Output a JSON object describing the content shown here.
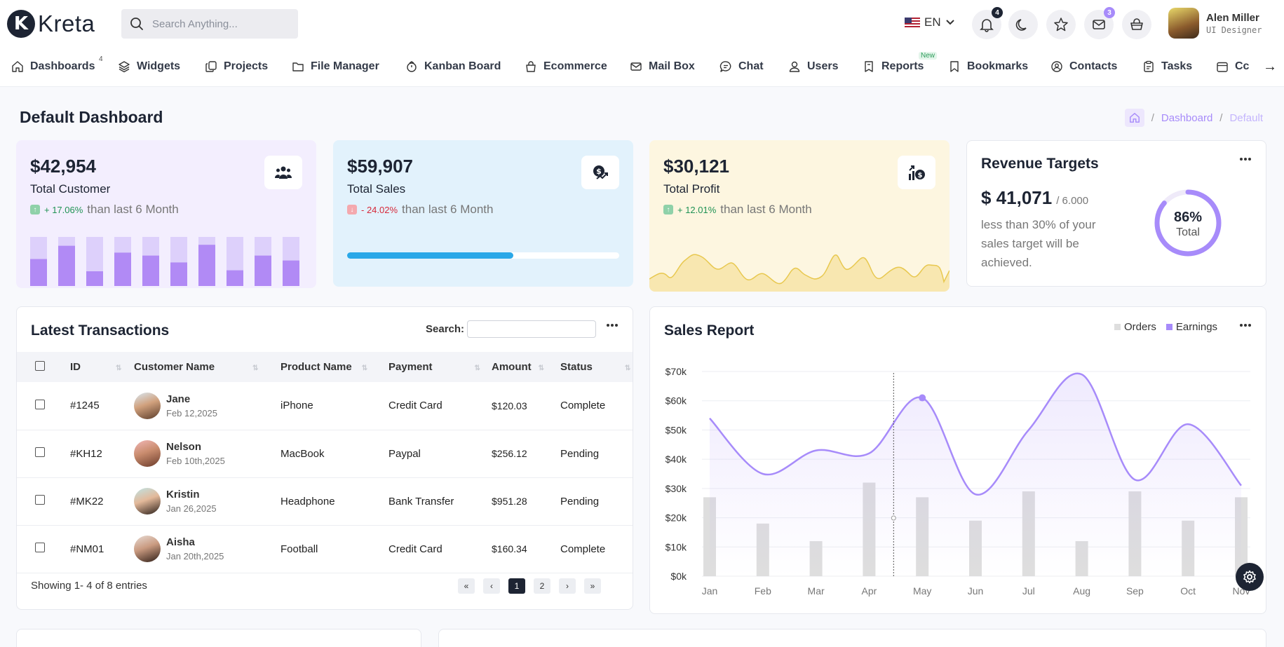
{
  "brand": {
    "name": "Kreta",
    "mark": "K"
  },
  "search": {
    "placeholder": "Search Anything..."
  },
  "header": {
    "language": "EN",
    "notifications_count": "4",
    "mail_count": "3",
    "user": {
      "name": "Alen Miller",
      "role": "UI Designer"
    }
  },
  "nav": {
    "items": [
      {
        "label": "Dashboards",
        "badge": "4"
      },
      {
        "label": "Widgets"
      },
      {
        "label": "Projects"
      },
      {
        "label": "File Manager"
      },
      {
        "label": "Kanban Board"
      },
      {
        "label": "Ecommerce"
      },
      {
        "label": "Mail Box"
      },
      {
        "label": "Chat"
      },
      {
        "label": "Users"
      },
      {
        "label": "Reports",
        "badge": "New"
      },
      {
        "label": "Bookmarks"
      },
      {
        "label": "Contacts"
      },
      {
        "label": "Tasks"
      },
      {
        "label": "Cc"
      }
    ],
    "arrow": "→"
  },
  "page": {
    "title": "Default Dashboard"
  },
  "breadcrumb": {
    "items": [
      "Dashboard",
      "Default"
    ],
    "sep": "/"
  },
  "stats": [
    {
      "value": "$42,954",
      "label": "Total Customer",
      "trend": "+ 17.06%",
      "direction": "up",
      "suffix": "than last 6 Month",
      "color": "#f3eefe",
      "icon": "users-icon"
    },
    {
      "value": "$59,907",
      "label": "Total Sales",
      "trend": "- 24.02%",
      "direction": "down",
      "suffix": "than last 6 Month",
      "color": "#e2f2fc",
      "icon": "dollar-chart-icon",
      "progress": 0.61
    },
    {
      "value": "$30,121",
      "label": "Total Profit",
      "trend": "+ 12.01%",
      "direction": "up",
      "suffix": "than last 6 Month",
      "color": "#fdf6e0",
      "icon": "profit-chart-icon"
    }
  ],
  "customer_bars": [
    0.55,
    0.82,
    0.3,
    0.68,
    0.62,
    0.48,
    0.84,
    0.32,
    0.62,
    0.52
  ],
  "revenue": {
    "title": "Revenue Targets",
    "value": "$ 41,071",
    "target": "/ 6.000",
    "description": "less than 30% of your sales target will be achieved.",
    "percent_label": "86%",
    "percent": 0.86,
    "total_label": "Total"
  },
  "transactions": {
    "title": "Latest Transactions",
    "search_label": "Search:",
    "columns": [
      "ID",
      "Customer Name",
      "Product Name",
      "Payment",
      "Amount",
      "Status"
    ],
    "rows": [
      {
        "id": "#1245",
        "name": "Jane",
        "date": "Feb 12,2025",
        "product": "iPhone",
        "payment": "Credit Card",
        "amount": "$120.03",
        "status": "Complete"
      },
      {
        "id": "#KH12",
        "name": "Nelson",
        "date": "Feb 10th,2025",
        "product": "MacBook",
        "payment": "Paypal",
        "amount": "$256.12",
        "status": "Pending"
      },
      {
        "id": "#MK22",
        "name": "Kristin",
        "date": "Jan 26,2025",
        "product": "Headphone",
        "payment": "Bank Transfer",
        "amount": "$951.28",
        "status": "Pending"
      },
      {
        "id": "#NM01",
        "name": "Aisha",
        "date": "Jan 20th,2025",
        "product": "Football",
        "payment": "Credit Card",
        "amount": "$160.34",
        "status": "Complete"
      }
    ],
    "footer": "Showing 1- 4 of 8 entries",
    "pages": [
      "«",
      "‹",
      "1",
      "2",
      "›",
      "»"
    ]
  },
  "sales": {
    "title": "Sales Report",
    "legend": [
      "Orders",
      "Earnings"
    ]
  },
  "chart_data": {
    "type": "line",
    "categories": [
      "Jan",
      "Feb",
      "Mar",
      "Apr",
      "May",
      "Jun",
      "Jul",
      "Aug",
      "Sep",
      "Oct",
      "Nov"
    ],
    "series": [
      {
        "name": "Orders",
        "type": "bar",
        "values": [
          27,
          18,
          12,
          32,
          27,
          19,
          29,
          12,
          29,
          19,
          27
        ],
        "color": "#dedede"
      },
      {
        "name": "Earnings",
        "type": "line",
        "values": [
          54,
          35,
          43,
          42,
          61,
          28,
          50,
          69,
          33,
          52,
          31
        ],
        "color": "#a78bfa"
      }
    ],
    "ylim": [
      0,
      70
    ],
    "yticks": [
      "$0k",
      "$10k",
      "$20k",
      "$30k",
      "$40k",
      "$50k",
      "$60k",
      "$70k"
    ],
    "grid": true,
    "legend": "top-right"
  }
}
